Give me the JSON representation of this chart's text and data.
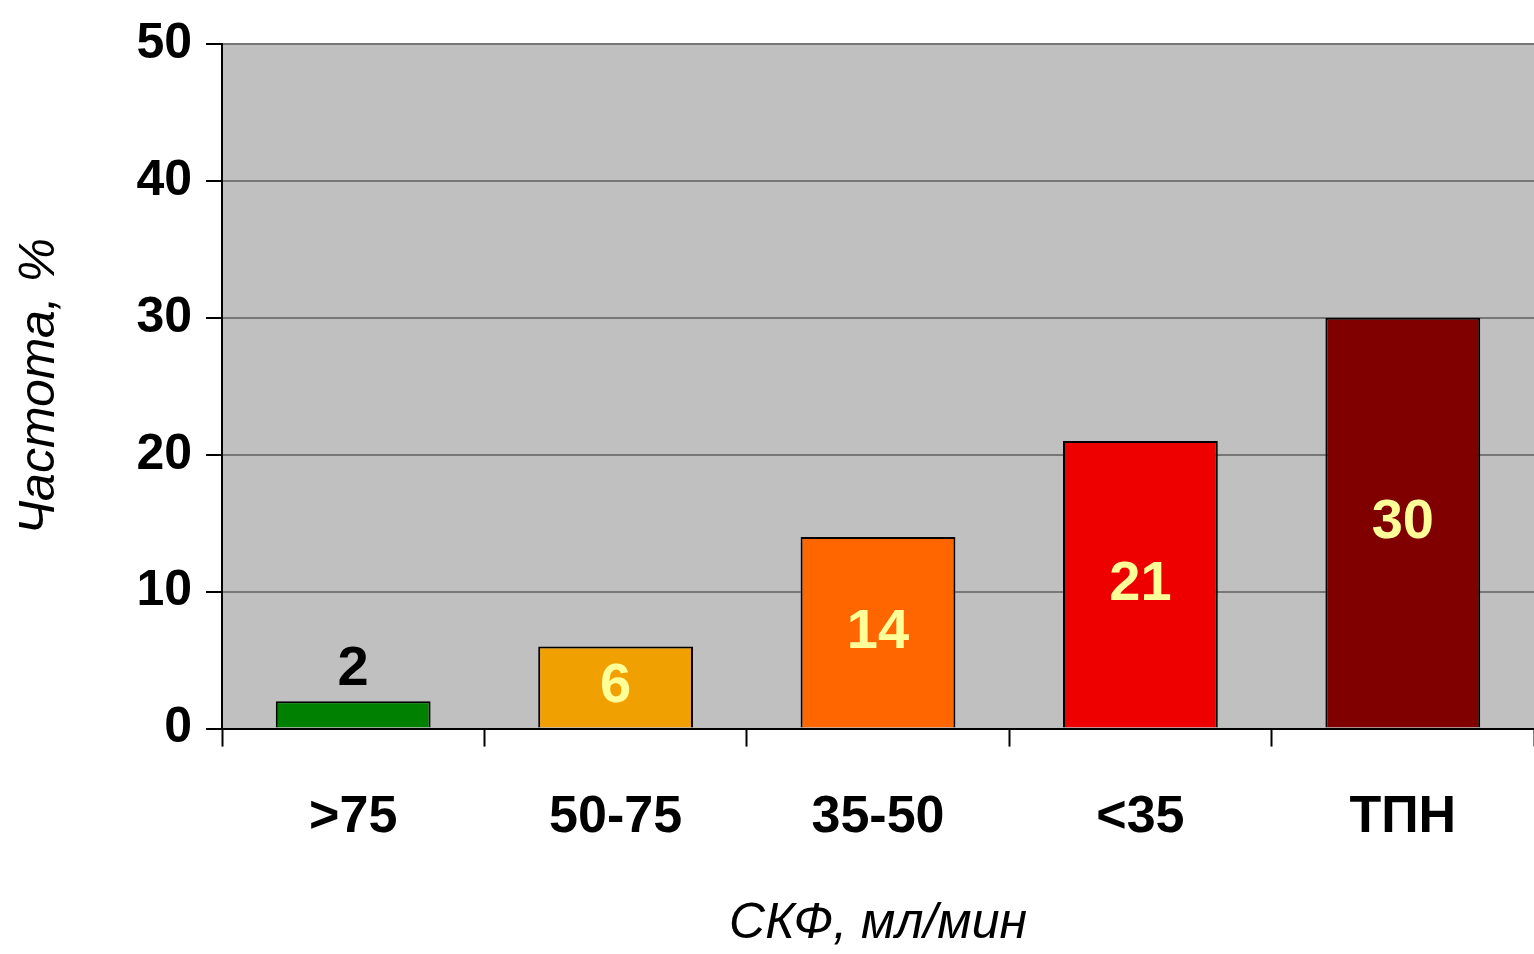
{
  "chart_data": {
    "type": "bar",
    "xlabel": "СКФ, мл/мин",
    "ylabel": "Частота, %",
    "categories": [
      ">75",
      "50-75",
      "35-50",
      "<35",
      "ТПН"
    ],
    "values": [
      2,
      6,
      14,
      21,
      30
    ],
    "colors": [
      "#008000",
      "#f0a000",
      "#ff6600",
      "#ee0000",
      "#800000"
    ],
    "ylim": [
      0,
      50
    ],
    "yticks": [
      0,
      10,
      20,
      30,
      40,
      50
    ],
    "grid": "y",
    "legend": false,
    "data_labels": true
  }
}
